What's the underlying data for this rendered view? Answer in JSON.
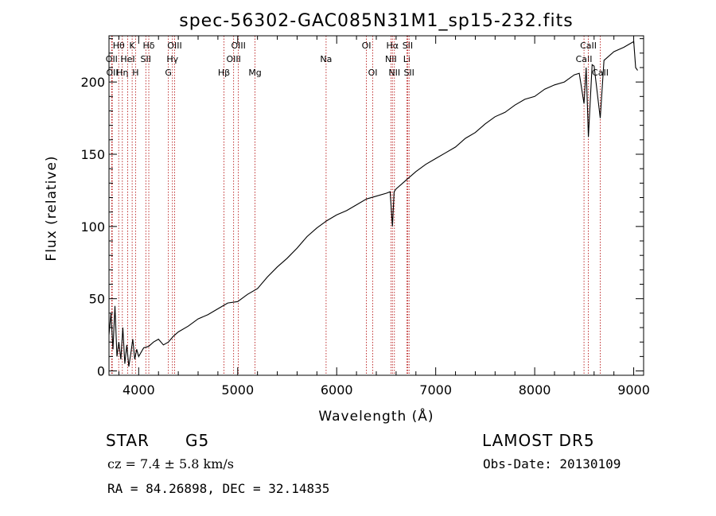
{
  "chart_data": {
    "type": "line",
    "title": "spec-56302-GAC085N31M1_sp15-232.fits",
    "xlabel": "Wavelength (Å)",
    "ylabel": "Flux (relative)",
    "xlim": [
      3700,
      9100
    ],
    "ylim": [
      -3,
      232
    ],
    "xticks": [
      4000,
      5000,
      6000,
      7000,
      8000,
      9000
    ],
    "yticks": [
      0,
      50,
      100,
      150,
      200
    ],
    "grid": false,
    "series": [
      {
        "x": [
          3700,
          3720,
          3740,
          3760,
          3780,
          3800,
          3820,
          3840,
          3860,
          3880,
          3900,
          3920,
          3940,
          3960,
          3980,
          4000,
          4050,
          4100,
          4150,
          4200,
          4250,
          4300,
          4350,
          4400,
          4500,
          4600,
          4700,
          4800,
          4900,
          5000,
          5100,
          5200,
          5300,
          5400,
          5500,
          5600,
          5700,
          5800,
          5900,
          6000,
          6100,
          6200,
          6300,
          6400,
          6500,
          6540,
          6563,
          6580,
          6600,
          6700,
          6800,
          6900,
          7000,
          7100,
          7200,
          7300,
          7400,
          7500,
          7600,
          7700,
          7800,
          7900,
          8000,
          8100,
          8200,
          8300,
          8400,
          8450,
          8498,
          8520,
          8542,
          8580,
          8600,
          8662,
          8700,
          8800,
          8900,
          8950,
          9000,
          9020,
          9040
        ],
        "y": [
          25,
          40,
          15,
          45,
          10,
          20,
          8,
          30,
          5,
          18,
          3,
          12,
          22,
          8,
          15,
          10,
          16,
          17,
          20,
          22,
          18,
          20,
          24,
          27,
          31,
          36,
          39,
          43,
          47,
          48,
          53,
          57,
          65,
          72,
          78,
          85,
          93,
          99,
          104,
          108,
          111,
          115,
          119,
          121,
          123,
          124,
          100,
          124,
          126,
          132,
          138,
          143,
          147,
          151,
          155,
          161,
          165,
          171,
          176,
          179,
          184,
          188,
          190,
          195,
          198,
          200,
          205,
          206,
          185,
          210,
          162,
          212,
          211,
          175,
          215,
          221,
          224,
          226,
          228,
          210,
          208
        ]
      }
    ],
    "line_markers": [
      {
        "x": 3727,
        "label": "OII",
        "row": 1
      },
      {
        "x": 3733,
        "label": "OII",
        "row": 2
      },
      {
        "x": 3798,
        "label": "Hθ",
        "row": 0
      },
      {
        "x": 3835,
        "label": "Hη",
        "row": 2
      },
      {
        "x": 3889,
        "label": "HeI",
        "row": 1
      },
      {
        "x": 3934,
        "label": "K",
        "row": 0
      },
      {
        "x": 3968,
        "label": "H",
        "row": 2
      },
      {
        "x": 4072,
        "label": "SII",
        "row": 1
      },
      {
        "x": 4102,
        "label": "Hδ",
        "row": 0
      },
      {
        "x": 4300,
        "label": "G",
        "row": 2
      },
      {
        "x": 4341,
        "label": "Hγ",
        "row": 1
      },
      {
        "x": 4363,
        "label": "OIII",
        "row": 0
      },
      {
        "x": 4861,
        "label": "Hβ",
        "row": 2
      },
      {
        "x": 4959,
        "label": "OIII",
        "row": 1
      },
      {
        "x": 5007,
        "label": "OIII",
        "row": 0
      },
      {
        "x": 5175,
        "label": "Mg",
        "row": 2
      },
      {
        "x": 5893,
        "label": "Na",
        "row": 1
      },
      {
        "x": 6300,
        "label": "OI",
        "row": 0
      },
      {
        "x": 6364,
        "label": "OI",
        "row": 2
      },
      {
        "x": 6548,
        "label": "NII",
        "row": 1
      },
      {
        "x": 6563,
        "label": "Hα",
        "row": 0
      },
      {
        "x": 6583,
        "label": "NII",
        "row": 2
      },
      {
        "x": 6708,
        "label": "Li",
        "row": 1
      },
      {
        "x": 6717,
        "label": "SII",
        "row": 0
      },
      {
        "x": 6731,
        "label": "SII",
        "row": 2
      },
      {
        "x": 8498,
        "label": "CaII",
        "row": 1
      },
      {
        "x": 8542,
        "label": "CaII",
        "row": 0
      },
      {
        "x": 8662,
        "label": "CaII",
        "row": 2
      }
    ]
  },
  "info": {
    "object_type": "STAR",
    "subclass": "G5",
    "survey": "LAMOST DR5",
    "cz_text": "cz = 7.4 ± 5.8 km/s",
    "obs_date": "Obs-Date: 20130109",
    "coords": "RA =  84.26898, DEC =  32.14835"
  }
}
